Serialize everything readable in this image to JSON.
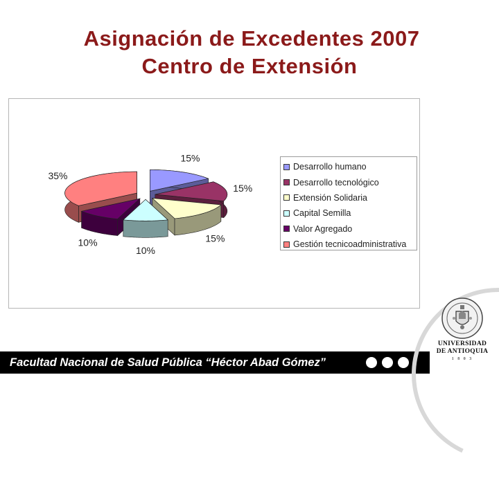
{
  "title": {
    "line1": "Asignación de Excedentes 2007",
    "line2": "Centro de Extensión"
  },
  "colors": {
    "title": "#8b1a1a",
    "footer_bg": "#000000",
    "footer_text": "#ffffff"
  },
  "chart_data": {
    "type": "pie",
    "title": "",
    "legend_position": "right",
    "series": [
      {
        "values": [
          15,
          15,
          15,
          10,
          10,
          35
        ]
      }
    ],
    "categories": [
      "Desarrollo humano",
      "Desarrollo tecnológico",
      "Extensión Solidaria",
      "Capital Semilla",
      "Valor Agregado",
      "Gestión tecnicoadministrativa"
    ],
    "value_labels": [
      "15%",
      "15%",
      "15%",
      "10%",
      "10%",
      "35%"
    ],
    "colors": [
      "#9999ff",
      "#993366",
      "#ffffcc",
      "#ccffff",
      "#660066",
      "#ff8080"
    ]
  },
  "footer": {
    "text": "Facultad Nacional de Salud Pública “Héctor Abad Gómez”"
  },
  "logo": {
    "line1": "UNIVERSIDAD",
    "line2": "DE ANTIOQUIA",
    "line3": "1 8 0 3",
    "icon": "university-seal-icon"
  }
}
